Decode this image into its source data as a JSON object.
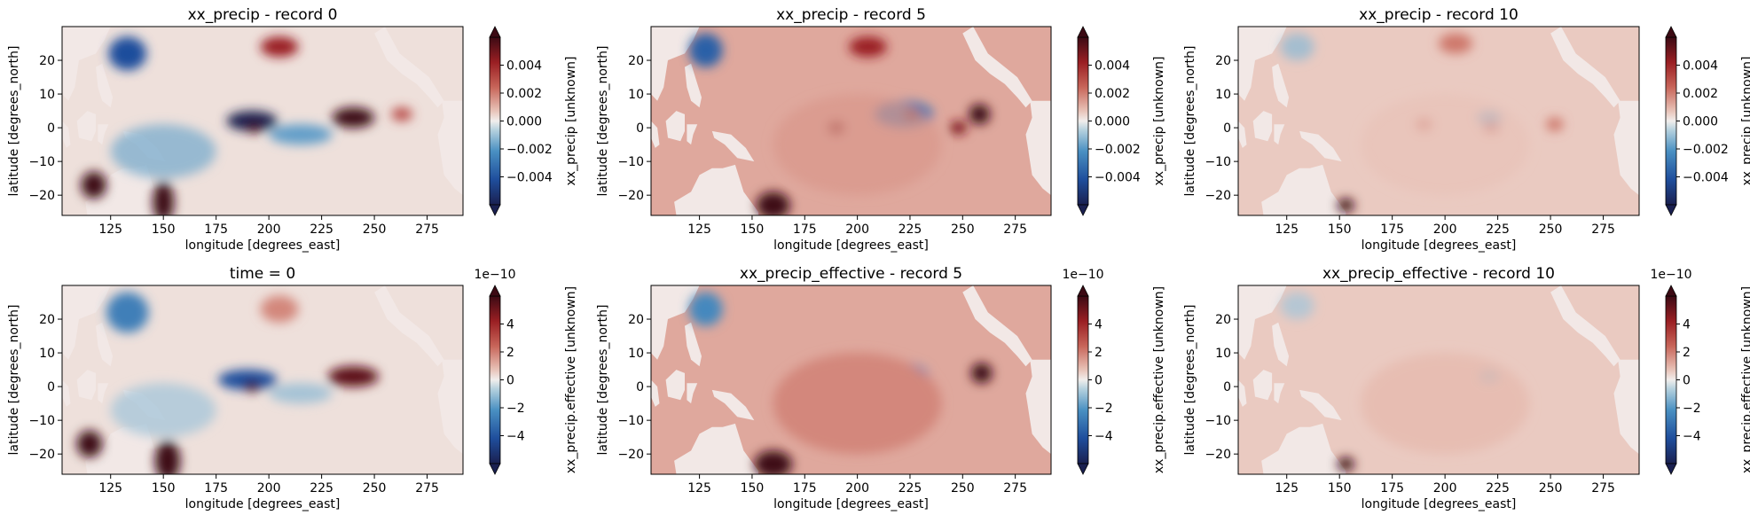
{
  "figure": {
    "colors": {
      "land": "#f2e8e6",
      "ocean_base": "#f6ebe7",
      "negative": "#2166ac",
      "positive": "#8b1a1a"
    }
  },
  "chart_data": [
    {
      "type": "heatmap",
      "title": "xx_precip - record 0",
      "xlabel": "longitude [degrees_east]",
      "ylabel": "latitude [degrees_north]",
      "xticks": [
        125,
        150,
        175,
        200,
        225,
        250,
        275
      ],
      "yticks": [
        -20,
        -10,
        0,
        10,
        20
      ],
      "xlim": [
        102,
        292
      ],
      "ylim": [
        -26,
        30
      ],
      "colorbar": {
        "label": "xx_precip [unknown]",
        "ticks": [
          "0.004",
          "0.002",
          "0.000",
          "−0.002",
          "−0.004"
        ],
        "exponent": "",
        "range": [
          -0.005,
          0.005
        ]
      },
      "features": [
        {
          "lon": 133,
          "lat": 22,
          "value": -0.7,
          "rlon": 9,
          "rlat": 5
        },
        {
          "lon": 205,
          "lat": 24,
          "value": 0.7,
          "rlon": 9,
          "rlat": 3
        },
        {
          "lon": 192,
          "lat": 2,
          "value": -1.0,
          "rlon": 12,
          "rlat": 3
        },
        {
          "lon": 193,
          "lat": 0,
          "value": 1.0,
          "rlon": 4,
          "rlat": 1.5
        },
        {
          "lon": 240,
          "lat": 3,
          "value": 1.0,
          "rlon": 10,
          "rlat": 3
        },
        {
          "lon": 263,
          "lat": 4,
          "value": 0.5,
          "rlon": 5,
          "rlat": 2
        },
        {
          "lon": 215,
          "lat": -2,
          "value": -0.3,
          "rlon": 15,
          "rlat": 3
        },
        {
          "lon": 150,
          "lat": -7,
          "value": -0.25,
          "rlon": 25,
          "rlat": 8
        },
        {
          "lon": 117,
          "lat": -17,
          "value": 1.0,
          "rlon": 6,
          "rlat": 4
        },
        {
          "lon": 150,
          "lat": -22,
          "value": 1.0,
          "rlon": 5,
          "rlat": 6
        }
      ]
    },
    {
      "type": "heatmap",
      "title": "xx_precip - record 5",
      "xlabel": "longitude [degrees_east]",
      "ylabel": "latitude [degrees_north]",
      "xticks": [
        125,
        150,
        175,
        200,
        225,
        250,
        275
      ],
      "yticks": [
        -20,
        -10,
        0,
        10,
        20
      ],
      "xlim": [
        102,
        292
      ],
      "ylim": [
        -26,
        30
      ],
      "colorbar": {
        "label": "xx_precip [unknown]",
        "ticks": [
          "0.004",
          "0.002",
          "0.000",
          "−0.002",
          "−0.004"
        ],
        "exponent": "",
        "range": [
          -0.005,
          0.005
        ]
      },
      "features": [
        {
          "lon": 128,
          "lat": 23,
          "value": -0.6,
          "rlon": 8,
          "rlat": 5
        },
        {
          "lon": 205,
          "lat": 24,
          "value": 0.7,
          "rlon": 9,
          "rlat": 3
        },
        {
          "lon": 190,
          "lat": 0,
          "value": 0.8,
          "rlon": 4,
          "rlat": 2
        },
        {
          "lon": 222,
          "lat": 4,
          "value": -0.5,
          "rlon": 14,
          "rlat": 4
        },
        {
          "lon": 226,
          "lat": 4,
          "value": 0.9,
          "rlon": 4,
          "rlat": 1.5
        },
        {
          "lon": 258,
          "lat": 4,
          "value": 1.0,
          "rlon": 5,
          "rlat": 3
        },
        {
          "lon": 248,
          "lat": 0,
          "value": 0.8,
          "rlon": 4,
          "rlat": 2
        },
        {
          "lon": 200,
          "lat": -5,
          "value": 0.25,
          "rlon": 40,
          "rlat": 15
        },
        {
          "lon": 160,
          "lat": -23,
          "value": 1.0,
          "rlon": 8,
          "rlat": 4
        }
      ]
    },
    {
      "type": "heatmap",
      "title": "xx_precip - record 10",
      "xlabel": "longitude [degrees_east]",
      "ylabel": "latitude [degrees_north]",
      "xticks": [
        125,
        150,
        175,
        200,
        225,
        250,
        275
      ],
      "yticks": [
        -20,
        -10,
        0,
        10,
        20
      ],
      "xlim": [
        102,
        292
      ],
      "ylim": [
        -26,
        30
      ],
      "colorbar": {
        "label": "xx_precip [unknown]",
        "ticks": [
          "0.004",
          "0.002",
          "0.000",
          "−0.002",
          "−0.004"
        ],
        "exponent": "",
        "range": [
          -0.005,
          0.005
        ]
      },
      "features": [
        {
          "lon": 130,
          "lat": 24,
          "value": -0.2,
          "rlon": 8,
          "rlat": 4
        },
        {
          "lon": 205,
          "lat": 25,
          "value": 0.35,
          "rlon": 8,
          "rlat": 3
        },
        {
          "lon": 190,
          "lat": 1,
          "value": 0.4,
          "rlon": 4,
          "rlat": 2
        },
        {
          "lon": 221,
          "lat": 3,
          "value": -0.3,
          "rlon": 6,
          "rlat": 2
        },
        {
          "lon": 222,
          "lat": 0,
          "value": 0.5,
          "rlon": 4,
          "rlat": 1.5
        },
        {
          "lon": 252,
          "lat": 1,
          "value": 0.35,
          "rlon": 4,
          "rlat": 2
        },
        {
          "lon": 200,
          "lat": -5,
          "value": 0.12,
          "rlon": 40,
          "rlat": 15
        },
        {
          "lon": 153,
          "lat": -23,
          "value": 1.0,
          "rlon": 4,
          "rlat": 2
        }
      ]
    },
    {
      "type": "heatmap",
      "title": "time = 0",
      "xlabel": "longitude [degrees_east]",
      "ylabel": "latitude [degrees_north]",
      "xticks": [
        125,
        150,
        175,
        200,
        225,
        250,
        275
      ],
      "yticks": [
        -20,
        -10,
        0,
        10,
        20
      ],
      "xlim": [
        102,
        292
      ],
      "ylim": [
        -26,
        30
      ],
      "colorbar": {
        "label": "xx_precip.effective [unknown]",
        "ticks": [
          "4",
          "2",
          "0",
          "−2",
          "−4"
        ],
        "exponent": "1e−10",
        "range": [
          -5,
          5
        ]
      },
      "features": [
        {
          "lon": 133,
          "lat": 22,
          "value": -0.45,
          "rlon": 10,
          "rlat": 6
        },
        {
          "lon": 205,
          "lat": 23,
          "value": 0.3,
          "rlon": 9,
          "rlat": 4
        },
        {
          "lon": 190,
          "lat": 2,
          "value": -0.7,
          "rlon": 14,
          "rlat": 3
        },
        {
          "lon": 192,
          "lat": 0,
          "value": 1.0,
          "rlon": 4,
          "rlat": 1.5
        },
        {
          "lon": 240,
          "lat": 3,
          "value": 0.9,
          "rlon": 12,
          "rlat": 3
        },
        {
          "lon": 215,
          "lat": -2,
          "value": -0.2,
          "rlon": 15,
          "rlat": 3
        },
        {
          "lon": 150,
          "lat": -7,
          "value": -0.15,
          "rlon": 25,
          "rlat": 8
        },
        {
          "lon": 115,
          "lat": -17,
          "value": 1.0,
          "rlon": 6,
          "rlat": 4
        },
        {
          "lon": 152,
          "lat": -22,
          "value": 1.0,
          "rlon": 6,
          "rlat": 6
        }
      ]
    },
    {
      "type": "heatmap",
      "title": "xx_precip_effective - record 5",
      "xlabel": "longitude [degrees_east]",
      "ylabel": "latitude [degrees_north]",
      "xticks": [
        125,
        150,
        175,
        200,
        225,
        250,
        275
      ],
      "yticks": [
        -20,
        -10,
        0,
        10,
        20
      ],
      "xlim": [
        102,
        292
      ],
      "ylim": [
        -26,
        30
      ],
      "colorbar": {
        "label": "xx_precip.effective [unknown]",
        "ticks": [
          "4",
          "2",
          "0",
          "−2",
          "−4"
        ],
        "exponent": "1e−10",
        "range": [
          -5,
          5
        ]
      },
      "features": [
        {
          "lon": 128,
          "lat": 23,
          "value": -0.4,
          "rlon": 8,
          "rlat": 5
        },
        {
          "lon": 190,
          "lat": 0,
          "value": 0.8,
          "rlon": 4,
          "rlat": 2
        },
        {
          "lon": 222,
          "lat": 3,
          "value": -0.4,
          "rlon": 12,
          "rlat": 4
        },
        {
          "lon": 226,
          "lat": 3,
          "value": 0.6,
          "rlon": 4,
          "rlat": 1.5
        },
        {
          "lon": 259,
          "lat": 4,
          "value": 1.0,
          "rlon": 5,
          "rlat": 3
        },
        {
          "lon": 200,
          "lat": -5,
          "value": 0.3,
          "rlon": 40,
          "rlat": 15
        },
        {
          "lon": 160,
          "lat": -23,
          "value": 1.0,
          "rlon": 9,
          "rlat": 4
        }
      ]
    },
    {
      "type": "heatmap",
      "title": "xx_precip_effective - record 10",
      "xlabel": "longitude [degrees_east]",
      "ylabel": "latitude [degrees_north]",
      "xticks": [
        125,
        150,
        175,
        200,
        225,
        250,
        275
      ],
      "yticks": [
        -20,
        -10,
        0,
        10,
        20
      ],
      "xlim": [
        102,
        292
      ],
      "ylim": [
        -26,
        30
      ],
      "colorbar": {
        "label": "xx_precip.effective [unknown]",
        "ticks": [
          "4",
          "2",
          "0",
          "−2",
          "−4"
        ],
        "exponent": "1e−10",
        "range": [
          -5,
          5
        ]
      },
      "features": [
        {
          "lon": 130,
          "lat": 24,
          "value": -0.15,
          "rlon": 8,
          "rlat": 4
        },
        {
          "lon": 221,
          "lat": 3,
          "value": -0.2,
          "rlon": 5,
          "rlat": 2
        },
        {
          "lon": 200,
          "lat": -5,
          "value": 0.15,
          "rlon": 40,
          "rlat": 15
        },
        {
          "lon": 153,
          "lat": -23,
          "value": 1.0,
          "rlon": 4,
          "rlat": 2
        }
      ]
    }
  ]
}
